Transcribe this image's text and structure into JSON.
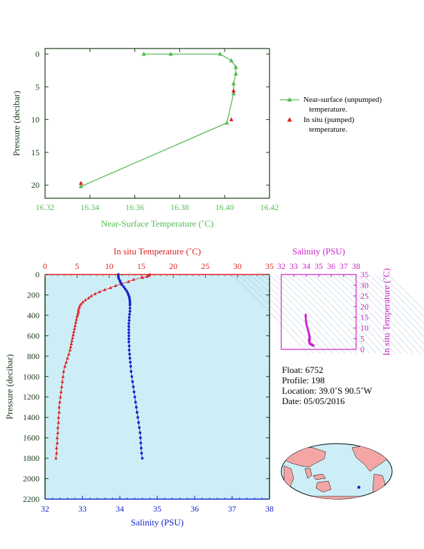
{
  "colors": {
    "green": "#55bb55",
    "red": "#dd2222",
    "blue": "#1122cc",
    "magenta": "#cc22cc",
    "panel_bg": "#cdeef7",
    "axis_dark": "#1a3a1a",
    "land": "#f4a6a6",
    "ocean": "#cdeef7"
  },
  "top_chart": {
    "xlabel": "Near-Surface Temperature (˚C)",
    "ylabel": "Pressure (decibar)",
    "xlim": [
      16.32,
      16.42
    ],
    "ylim": [
      0,
      22
    ],
    "xticks": [
      "16.32",
      "16.34",
      "16.36",
      "16.38",
      "16.40",
      "16.42"
    ],
    "yticks": [
      "0",
      "5",
      "10",
      "15",
      "20"
    ],
    "legend": [
      {
        "name": "Near-surface (unpumped)",
        "name2": "temperature."
      },
      {
        "name": "In situ (pumped)",
        "name2": "temperature."
      }
    ]
  },
  "main_chart": {
    "top_xlabel": "In situ Temperature (˚C)",
    "bottom_xlabel": "Salinity (PSU)",
    "ylabel": "Pressure (decibar)",
    "temp_lim": [
      0,
      35
    ],
    "sal_lim": [
      32,
      38
    ],
    "pres_lim": [
      0,
      2200
    ],
    "temp_ticks": [
      "0",
      "5",
      "10",
      "15",
      "20",
      "25",
      "30",
      "35"
    ],
    "sal_ticks": [
      "32",
      "33",
      "34",
      "35",
      "36",
      "37",
      "38"
    ],
    "pres_ticks": [
      "0",
      "200",
      "400",
      "600",
      "800",
      "1000",
      "1200",
      "1400",
      "1600",
      "1800",
      "2000",
      "2200"
    ]
  },
  "ts_chart": {
    "xlabel": "Salinity (PSU)",
    "ylabel": "In situ Temperature (˚C)",
    "xticks": [
      "32",
      "33",
      "34",
      "35",
      "36",
      "37",
      "38"
    ],
    "yticks": [
      "0",
      "5",
      "10",
      "15",
      "20",
      "25",
      "30",
      "35"
    ]
  },
  "info": {
    "float": "Float:  6752",
    "profile": "Profile:  198",
    "location": "Location:  39.0˚S  90.5˚W",
    "date": "Date:  05/05/2016"
  },
  "chart_data": [
    {
      "type": "line",
      "series": [
        {
          "name": "Near-surface (unpumped) temperature.",
          "points": [
            [
              16.364,
              0.0
            ],
            [
              16.376,
              0.0
            ],
            [
              16.398,
              0.0
            ],
            [
              16.403,
              1.0
            ],
            [
              16.405,
              2.0
            ],
            [
              16.405,
              3.0
            ],
            [
              16.404,
              4.5
            ],
            [
              16.404,
              6.0
            ],
            [
              16.401,
              10.5
            ],
            [
              16.336,
              20.2
            ]
          ]
        },
        {
          "name": "In situ (pumped) temperature.",
          "points": [
            [
              16.404,
              5.6
            ],
            [
              16.403,
              10.0
            ],
            [
              16.336,
              19.7
            ]
          ]
        }
      ]
    },
    {
      "type": "scatter",
      "series": [
        {
          "name": "In situ Temperature",
          "points": [
            [
              16.3,
              0
            ],
            [
              16.2,
              10
            ],
            [
              15.9,
              20
            ],
            [
              15.2,
              30
            ],
            [
              13.8,
              50
            ],
            [
              13.0,
              70
            ],
            [
              12.0,
              90
            ],
            [
              11.0,
              110
            ],
            [
              10.2,
              130
            ],
            [
              9.3,
              150
            ],
            [
              8.5,
              170
            ],
            [
              7.8,
              190
            ],
            [
              7.2,
              210
            ],
            [
              6.8,
              230
            ],
            [
              6.3,
              250
            ],
            [
              5.9,
              270
            ],
            [
              5.6,
              290
            ],
            [
              5.4,
              310
            ],
            [
              5.3,
              330
            ],
            [
              5.2,
              350
            ],
            [
              5.2,
              370
            ],
            [
              5.1,
              390
            ],
            [
              5.0,
              410
            ],
            [
              4.9,
              440
            ],
            [
              4.8,
              470
            ],
            [
              4.7,
              500
            ],
            [
              4.6,
              530
            ],
            [
              4.5,
              560
            ],
            [
              4.4,
              590
            ],
            [
              4.3,
              620
            ],
            [
              4.2,
              650
            ],
            [
              4.1,
              680
            ],
            [
              4.0,
              710
            ],
            [
              3.9,
              740
            ],
            [
              3.7,
              780
            ],
            [
              3.5,
              820
            ],
            [
              3.3,
              860
            ],
            [
              3.1,
              900
            ],
            [
              2.9,
              950
            ],
            [
              2.8,
              1000
            ],
            [
              2.7,
              1050
            ],
            [
              2.6,
              1100
            ],
            [
              2.5,
              1150
            ],
            [
              2.4,
              1200
            ],
            [
              2.3,
              1250
            ],
            [
              2.2,
              1300
            ],
            [
              2.2,
              1350
            ],
            [
              2.1,
              1400
            ],
            [
              2.1,
              1450
            ],
            [
              2.0,
              1500
            ],
            [
              2.0,
              1550
            ],
            [
              1.9,
              1600
            ],
            [
              1.9,
              1650
            ],
            [
              1.8,
              1700
            ],
            [
              1.8,
              1750
            ],
            [
              1.7,
              1800
            ]
          ]
        },
        {
          "name": "Salinity",
          "points": [
            [
              33.96,
              0
            ],
            [
              33.96,
              20
            ],
            [
              33.97,
              40
            ],
            [
              34.0,
              60
            ],
            [
              34.02,
              80
            ],
            [
              34.05,
              100
            ],
            [
              34.1,
              120
            ],
            [
              34.14,
              140
            ],
            [
              34.18,
              160
            ],
            [
              34.21,
              180
            ],
            [
              34.23,
              200
            ],
            [
              34.25,
              220
            ],
            [
              34.26,
              240
            ],
            [
              34.27,
              260
            ],
            [
              34.27,
              280
            ],
            [
              34.27,
              300
            ],
            [
              34.27,
              330
            ],
            [
              34.27,
              360
            ],
            [
              34.26,
              390
            ],
            [
              34.25,
              420
            ],
            [
              34.25,
              450
            ],
            [
              34.24,
              480
            ],
            [
              34.24,
              510
            ],
            [
              34.24,
              540
            ],
            [
              34.24,
              570
            ],
            [
              34.24,
              600
            ],
            [
              34.24,
              630
            ],
            [
              34.24,
              660
            ],
            [
              34.25,
              700
            ],
            [
              34.25,
              740
            ],
            [
              34.26,
              780
            ],
            [
              34.27,
              820
            ],
            [
              34.28,
              860
            ],
            [
              34.29,
              900
            ],
            [
              34.3,
              950
            ],
            [
              34.32,
              1000
            ],
            [
              34.34,
              1050
            ],
            [
              34.36,
              1100
            ],
            [
              34.38,
              1150
            ],
            [
              34.4,
              1200
            ],
            [
              34.42,
              1250
            ],
            [
              34.44,
              1300
            ],
            [
              34.46,
              1350
            ],
            [
              34.48,
              1400
            ],
            [
              34.5,
              1450
            ],
            [
              34.52,
              1500
            ],
            [
              34.54,
              1550
            ],
            [
              34.55,
              1600
            ],
            [
              34.56,
              1650
            ],
            [
              34.57,
              1700
            ],
            [
              34.58,
              1750
            ],
            [
              34.6,
              1800
            ]
          ]
        }
      ]
    }
  ]
}
